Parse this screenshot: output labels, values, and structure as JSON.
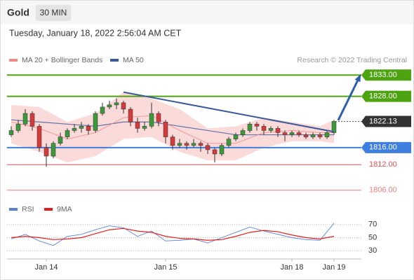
{
  "header": {
    "title": "Gold",
    "timeframe": "30 MIN",
    "datetime": "Tuesday, January 18, 2022 2:56:04 AM CET"
  },
  "chart_data": {
    "type": "candlestick",
    "credit": "Research © 2022 Trading Central",
    "categories": [
      null,
      null,
      null,
      null,
      null,
      "Jan 14",
      null,
      null,
      null,
      null,
      null,
      null,
      null,
      null,
      null,
      null,
      null,
      null,
      null,
      null,
      null,
      null,
      "Jan 15",
      null,
      null,
      null,
      null,
      null,
      null,
      null,
      null,
      null,
      null,
      null,
      null,
      null,
      null,
      null,
      null,
      null,
      "Jan 18",
      null,
      null,
      null,
      null,
      null,
      "Jan 19"
    ],
    "open": [
      1819,
      1820,
      1821.5,
      1824,
      1821,
      1816,
      1814,
      1817,
      1818.5,
      1820,
      1820.5,
      1821,
      1820,
      1824,
      1825.5,
      1826,
      1826.5,
      1825,
      1822,
      1820.5,
      1821,
      1824,
      1822,
      1818.5,
      1816.5,
      1817,
      1816.5,
      1817,
      1816.5,
      1815.5,
      1814.5,
      1816.5,
      1818,
      1819,
      1820,
      1821.5,
      1821,
      1820,
      1820.5,
      1819.5,
      1819,
      1819.5,
      1819,
      1818.5,
      1819,
      1818.5,
      1819.5
    ],
    "high": [
      1821,
      1822.5,
      1825,
      1824.5,
      1821.5,
      1817,
      1817.5,
      1819.5,
      1820.5,
      1821.5,
      1822,
      1821.5,
      1824.5,
      1826.5,
      1827,
      1827.5,
      1827,
      1825.5,
      1823,
      1822,
      1826.5,
      1824.5,
      1822.5,
      1819,
      1818,
      1817.5,
      1818,
      1817.5,
      1817,
      1816,
      1817,
      1818.5,
      1819.5,
      1820.5,
      1822,
      1822,
      1821.5,
      1821,
      1821,
      1820,
      1820,
      1820,
      1819.5,
      1819.5,
      1819.5,
      1820,
      1822.5
    ],
    "low": [
      1818.5,
      1819.5,
      1821,
      1820,
      1815,
      1811.5,
      1813.5,
      1816.5,
      1818,
      1819.5,
      1819.5,
      1819,
      1819.5,
      1823.5,
      1825,
      1825,
      1824,
      1821,
      1819.5,
      1820,
      1820.5,
      1821,
      1817,
      1815.5,
      1816,
      1815.5,
      1816,
      1815,
      1814.5,
      1812.5,
      1814,
      1816,
      1817.5,
      1818.5,
      1819.5,
      1820,
      1819,
      1819.5,
      1818.5,
      1817.5,
      1818.5,
      1818.5,
      1818,
      1818,
      1818,
      1818,
      1819
    ],
    "close": [
      1820,
      1821.5,
      1824,
      1821,
      1816,
      1814,
      1817,
      1818.5,
      1820,
      1820.5,
      1821,
      1820,
      1824,
      1825.5,
      1826,
      1826.5,
      1825,
      1822,
      1820.5,
      1821,
      1824,
      1822,
      1818.5,
      1816.5,
      1817,
      1816.5,
      1817,
      1816.5,
      1815.5,
      1814.5,
      1816.5,
      1818,
      1819,
      1820,
      1821.5,
      1821,
      1820,
      1820.5,
      1819.5,
      1819,
      1819.5,
      1819,
      1818.5,
      1819,
      1818.5,
      1819.5,
      1822.13
    ],
    "up_color": "#3a9a3a",
    "down_color": "#d43a3a",
    "ylim": [
      1804,
      1835
    ],
    "overlay_x": [
      0,
      4,
      8,
      12,
      16,
      20,
      24,
      28,
      32,
      36,
      40,
      44,
      46
    ],
    "ma20": {
      "name": "MA 20 + Bollinger Bands",
      "color": "#f08a8a",
      "values": [
        1822,
        1820.5,
        1818,
        1819.5,
        1823,
        1823.5,
        1820,
        1817,
        1817,
        1819.5,
        1820,
        1819.5,
        1819.5
      ]
    },
    "bb_upper": [
      1826,
      1825.5,
      1822,
      1824,
      1829,
      1827.5,
      1825,
      1820.5,
      1821,
      1823,
      1822,
      1821,
      1822.5
    ],
    "bb_lower": [
      1817,
      1815,
      1812.5,
      1814,
      1818,
      1818.5,
      1815,
      1813,
      1813,
      1816,
      1817.5,
      1817.5,
      1817
    ],
    "band_color": "#fbdada",
    "ma50": {
      "name": "MA 50",
      "color": "#3d5a98",
      "values": [
        1822.5,
        1822,
        1821.5,
        1821,
        1822,
        1822,
        1821,
        1820,
        1819,
        1819,
        1819,
        1819,
        1819
      ]
    },
    "levels": [
      {
        "value": 1833,
        "label": "1833.00",
        "color": "#4ea311",
        "box": true
      },
      {
        "value": 1828,
        "label": "1828.00",
        "color": "#4ea311",
        "box": true
      },
      {
        "value": 1822.13,
        "label": "1822.13",
        "color": "#333333",
        "box": true,
        "dashed": true
      },
      {
        "value": 1816,
        "label": "1816.00",
        "color": "#3f7fe0",
        "box": true
      },
      {
        "value": 1812,
        "label": "1812.00",
        "color": "#e05050",
        "box": false
      },
      {
        "value": 1806,
        "label": "1806.00",
        "color": "#e88080",
        "box": false
      }
    ],
    "trendline": {
      "x": [
        16,
        46
      ],
      "values": [
        1829,
        1819.7
      ],
      "color": "#3d5a98"
    },
    "arrow": {
      "x": [
        46.6,
        49.7
      ],
      "values": [
        1822.4,
        1832.8
      ],
      "color": "#2f5fa8"
    },
    "rsi": {
      "type": "line",
      "x": [
        0,
        2,
        4,
        6,
        8,
        10,
        12,
        14,
        16,
        18,
        20,
        22,
        24,
        26,
        28,
        30,
        32,
        34,
        36,
        38,
        40,
        42,
        44,
        46
      ],
      "ylim": [
        25,
        75
      ],
      "yticks": [
        70,
        50,
        30
      ],
      "series": [
        {
          "name": "RSI",
          "color": "#5b80d8",
          "values": [
            48,
            55,
            45,
            38,
            52,
            55,
            62,
            68,
            65,
            52,
            60,
            45,
            46,
            48,
            42,
            50,
            58,
            66,
            60,
            55,
            50,
            47,
            46,
            72
          ]
        },
        {
          "name": "9MA",
          "color": "#e02020",
          "values": [
            50,
            52,
            50,
            47,
            48,
            50,
            56,
            62,
            64,
            60,
            58,
            52,
            49,
            48,
            46,
            47,
            52,
            58,
            61,
            59,
            54,
            50,
            48,
            52
          ]
        }
      ]
    }
  }
}
